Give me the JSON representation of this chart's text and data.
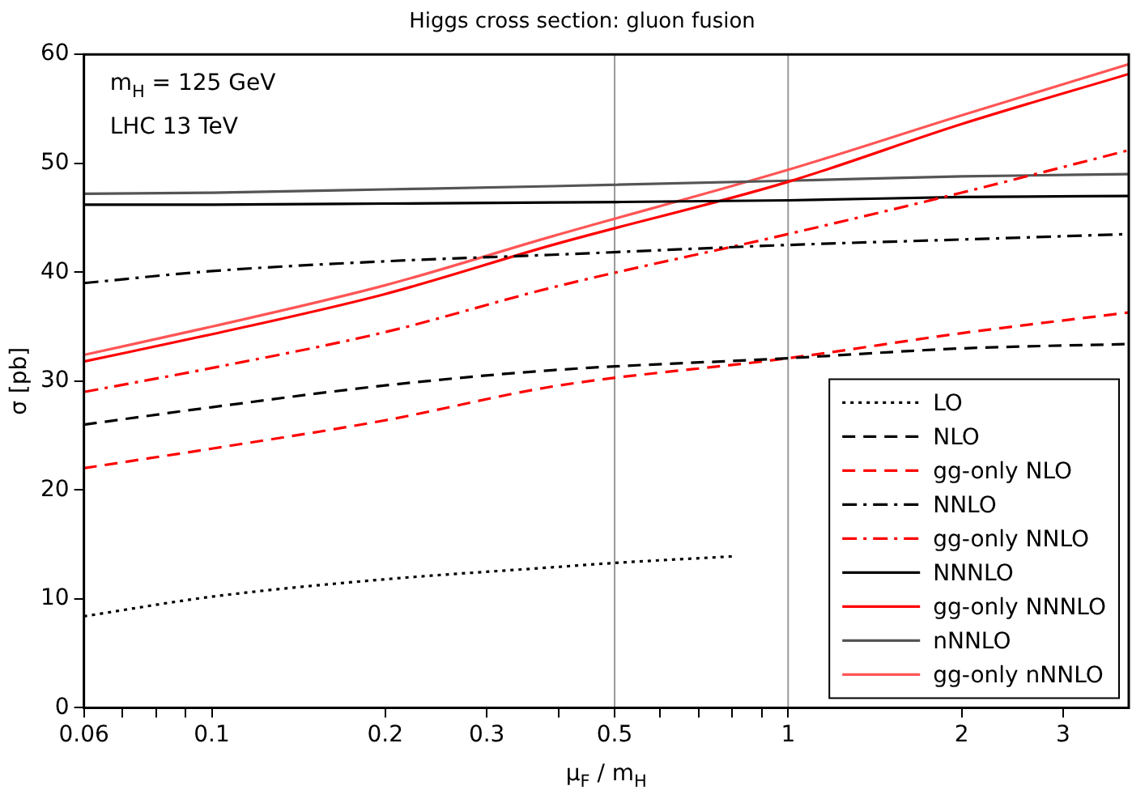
{
  "chart_data": {
    "type": "line",
    "title": "Higgs cross section: gluon fusion",
    "xlabel": "μ$_{F}$ / m$_{H}$",
    "ylabel": "σ [pb]",
    "annotations": [
      "m$_{H}$ = 125 GeV",
      "LHC 13 TeV"
    ],
    "x": [
      0.06,
      0.1,
      0.2,
      0.39,
      1,
      2,
      3.9
    ],
    "log": "x",
    "xlim": [
      0.06,
      3.9
    ],
    "xticks": [
      0.06,
      {
        "value": 0.07,
        "label": null
      },
      {
        "value": 0.08,
        "label": null
      },
      {
        "value": 0.09,
        "label": null
      },
      0.1,
      0.2,
      0.3,
      {
        "value": 0.4,
        "label": null
      },
      0.5,
      {
        "value": 0.6,
        "label": null
      },
      {
        "value": 0.7,
        "label": null
      },
      {
        "value": 0.8,
        "label": null
      },
      {
        "value": 0.9,
        "label": null
      },
      1,
      2,
      3
    ],
    "ylim": [
      0,
      60
    ],
    "yticks": [
      0,
      10,
      20,
      30,
      40,
      50,
      60
    ],
    "grid": false,
    "legend": "bottom right",
    "marker": "none",
    "ref_lines": [
      {
        "axis": "x",
        "value": 0.5,
        "color": "#999999"
      },
      {
        "axis": "x",
        "value": 1,
        "color": "#999999"
      }
    ],
    "series": [
      {
        "name": "LO",
        "color": "#000000",
        "line_style": "dotted",
        "x": [
          0.06,
          0.1,
          0.2,
          0.39,
          0.5,
          0.8
        ],
        "values": [
          8.4,
          10.2,
          11.8,
          12.9,
          13.3,
          13.9
        ]
      },
      {
        "name": "NLO",
        "color": "#000000",
        "line_style": "dashed",
        "values": [
          26,
          27.6,
          29.6,
          31,
          32.1,
          33,
          33.4
        ]
      },
      {
        "name": "gg-only NLO",
        "color": "#ff0000",
        "line_style": "dashed",
        "values": [
          22,
          23.8,
          26.4,
          29.5,
          32.1,
          34.4,
          36.3
        ]
      },
      {
        "name": "NNLO",
        "color": "#000000",
        "line_style": "dashdot",
        "values": [
          39,
          40.1,
          41,
          41.6,
          42.5,
          43,
          43.5
        ]
      },
      {
        "name": "gg-only NNLO",
        "color": "#ff0000",
        "line_style": "dashdot",
        "values": [
          29,
          31.2,
          34.5,
          38.6,
          43.5,
          47.3,
          51.2
        ]
      },
      {
        "name": "NNNLO",
        "color": "#000000",
        "line_style": "solid",
        "values": [
          46.2,
          46.2,
          46.3,
          46.4,
          46.6,
          46.9,
          47
        ]
      },
      {
        "name": "gg-only NNNLO",
        "color": "#ff0000",
        "line_style": "solid",
        "values": [
          31.8,
          34.3,
          38,
          42.5,
          48.3,
          53.6,
          58.2
        ]
      },
      {
        "name": "nNNLO",
        "color": "#555555",
        "line_style": "solid",
        "values": [
          47.2,
          47.3,
          47.6,
          47.9,
          48.4,
          48.8,
          49
        ]
      },
      {
        "name": "gg-only nNNLO",
        "color": "#ff5555",
        "line_style": "solid",
        "values": [
          32.4,
          35,
          38.8,
          43.3,
          49.4,
          54.4,
          59.1
        ]
      }
    ]
  }
}
